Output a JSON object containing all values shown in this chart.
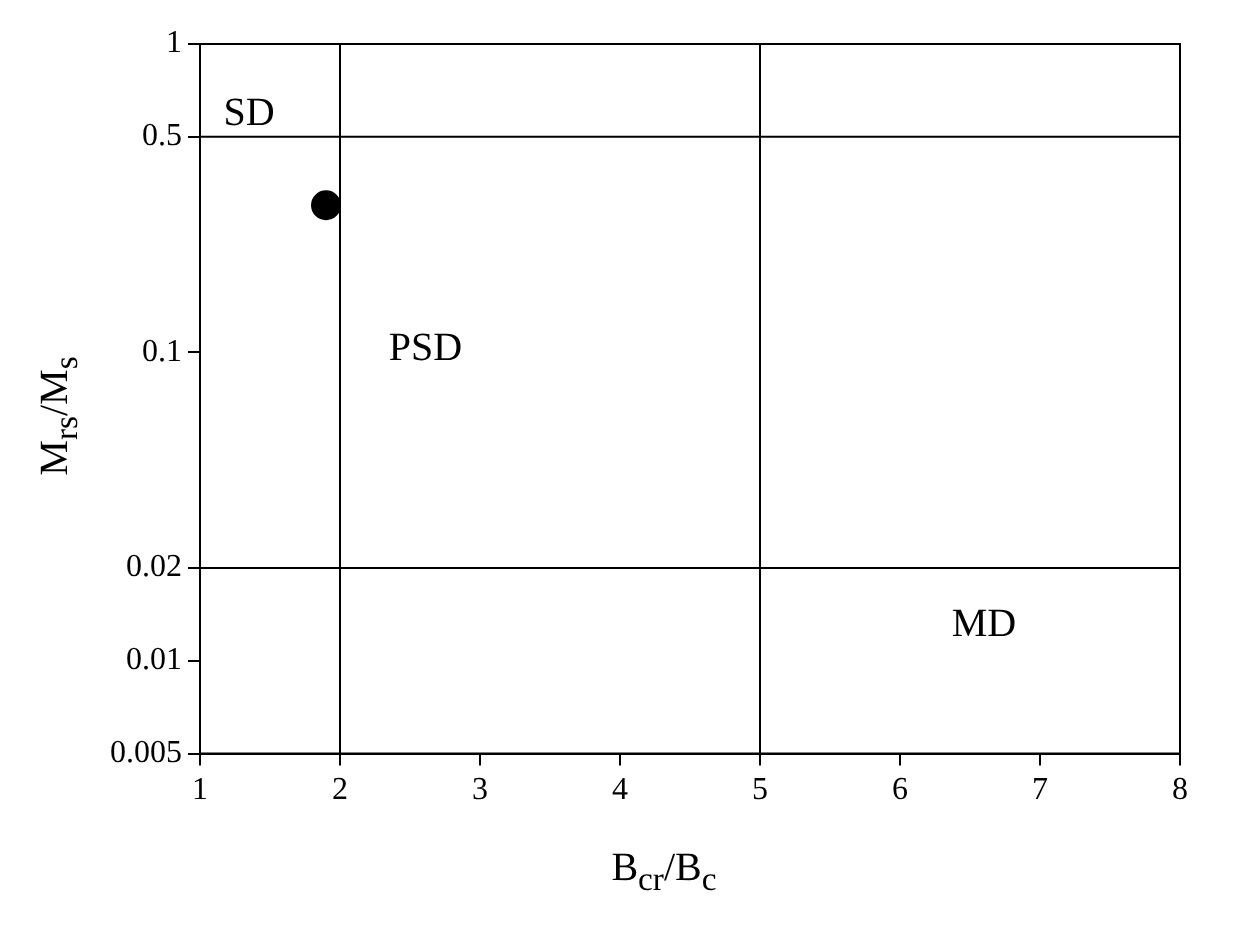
{
  "chart_data": {
    "type": "scatter",
    "xlabel": "B$_{cr}$/B$_{c}$",
    "ylabel": "M$_{rs}$/M$_{s}$",
    "x": [
      1.9
    ],
    "values": [
      0.3
    ],
    "color": "#000000",
    "marker": "circle",
    "xlim": [
      1,
      8
    ],
    "xticks": [
      1,
      2,
      3,
      4,
      5,
      6,
      7,
      8
    ],
    "ylim": [
      0.005,
      1
    ],
    "yticks": [
      0.005,
      0.01,
      0.02,
      0.1,
      0.5,
      1
    ],
    "log": "y",
    "grid": false,
    "legend": false,
    "ref_lines": [
      {
        "axis": "y",
        "value": 0.5,
        "color": "#000000"
      },
      {
        "axis": "y",
        "value": 0.02,
        "color": "#000000"
      },
      {
        "axis": "x",
        "value": 2,
        "color": "#000000"
      },
      {
        "axis": "x",
        "value": 5,
        "color": "#000000"
      }
    ],
    "annotations": [
      "SD",
      "PSD",
      "MD"
    ]
  }
}
